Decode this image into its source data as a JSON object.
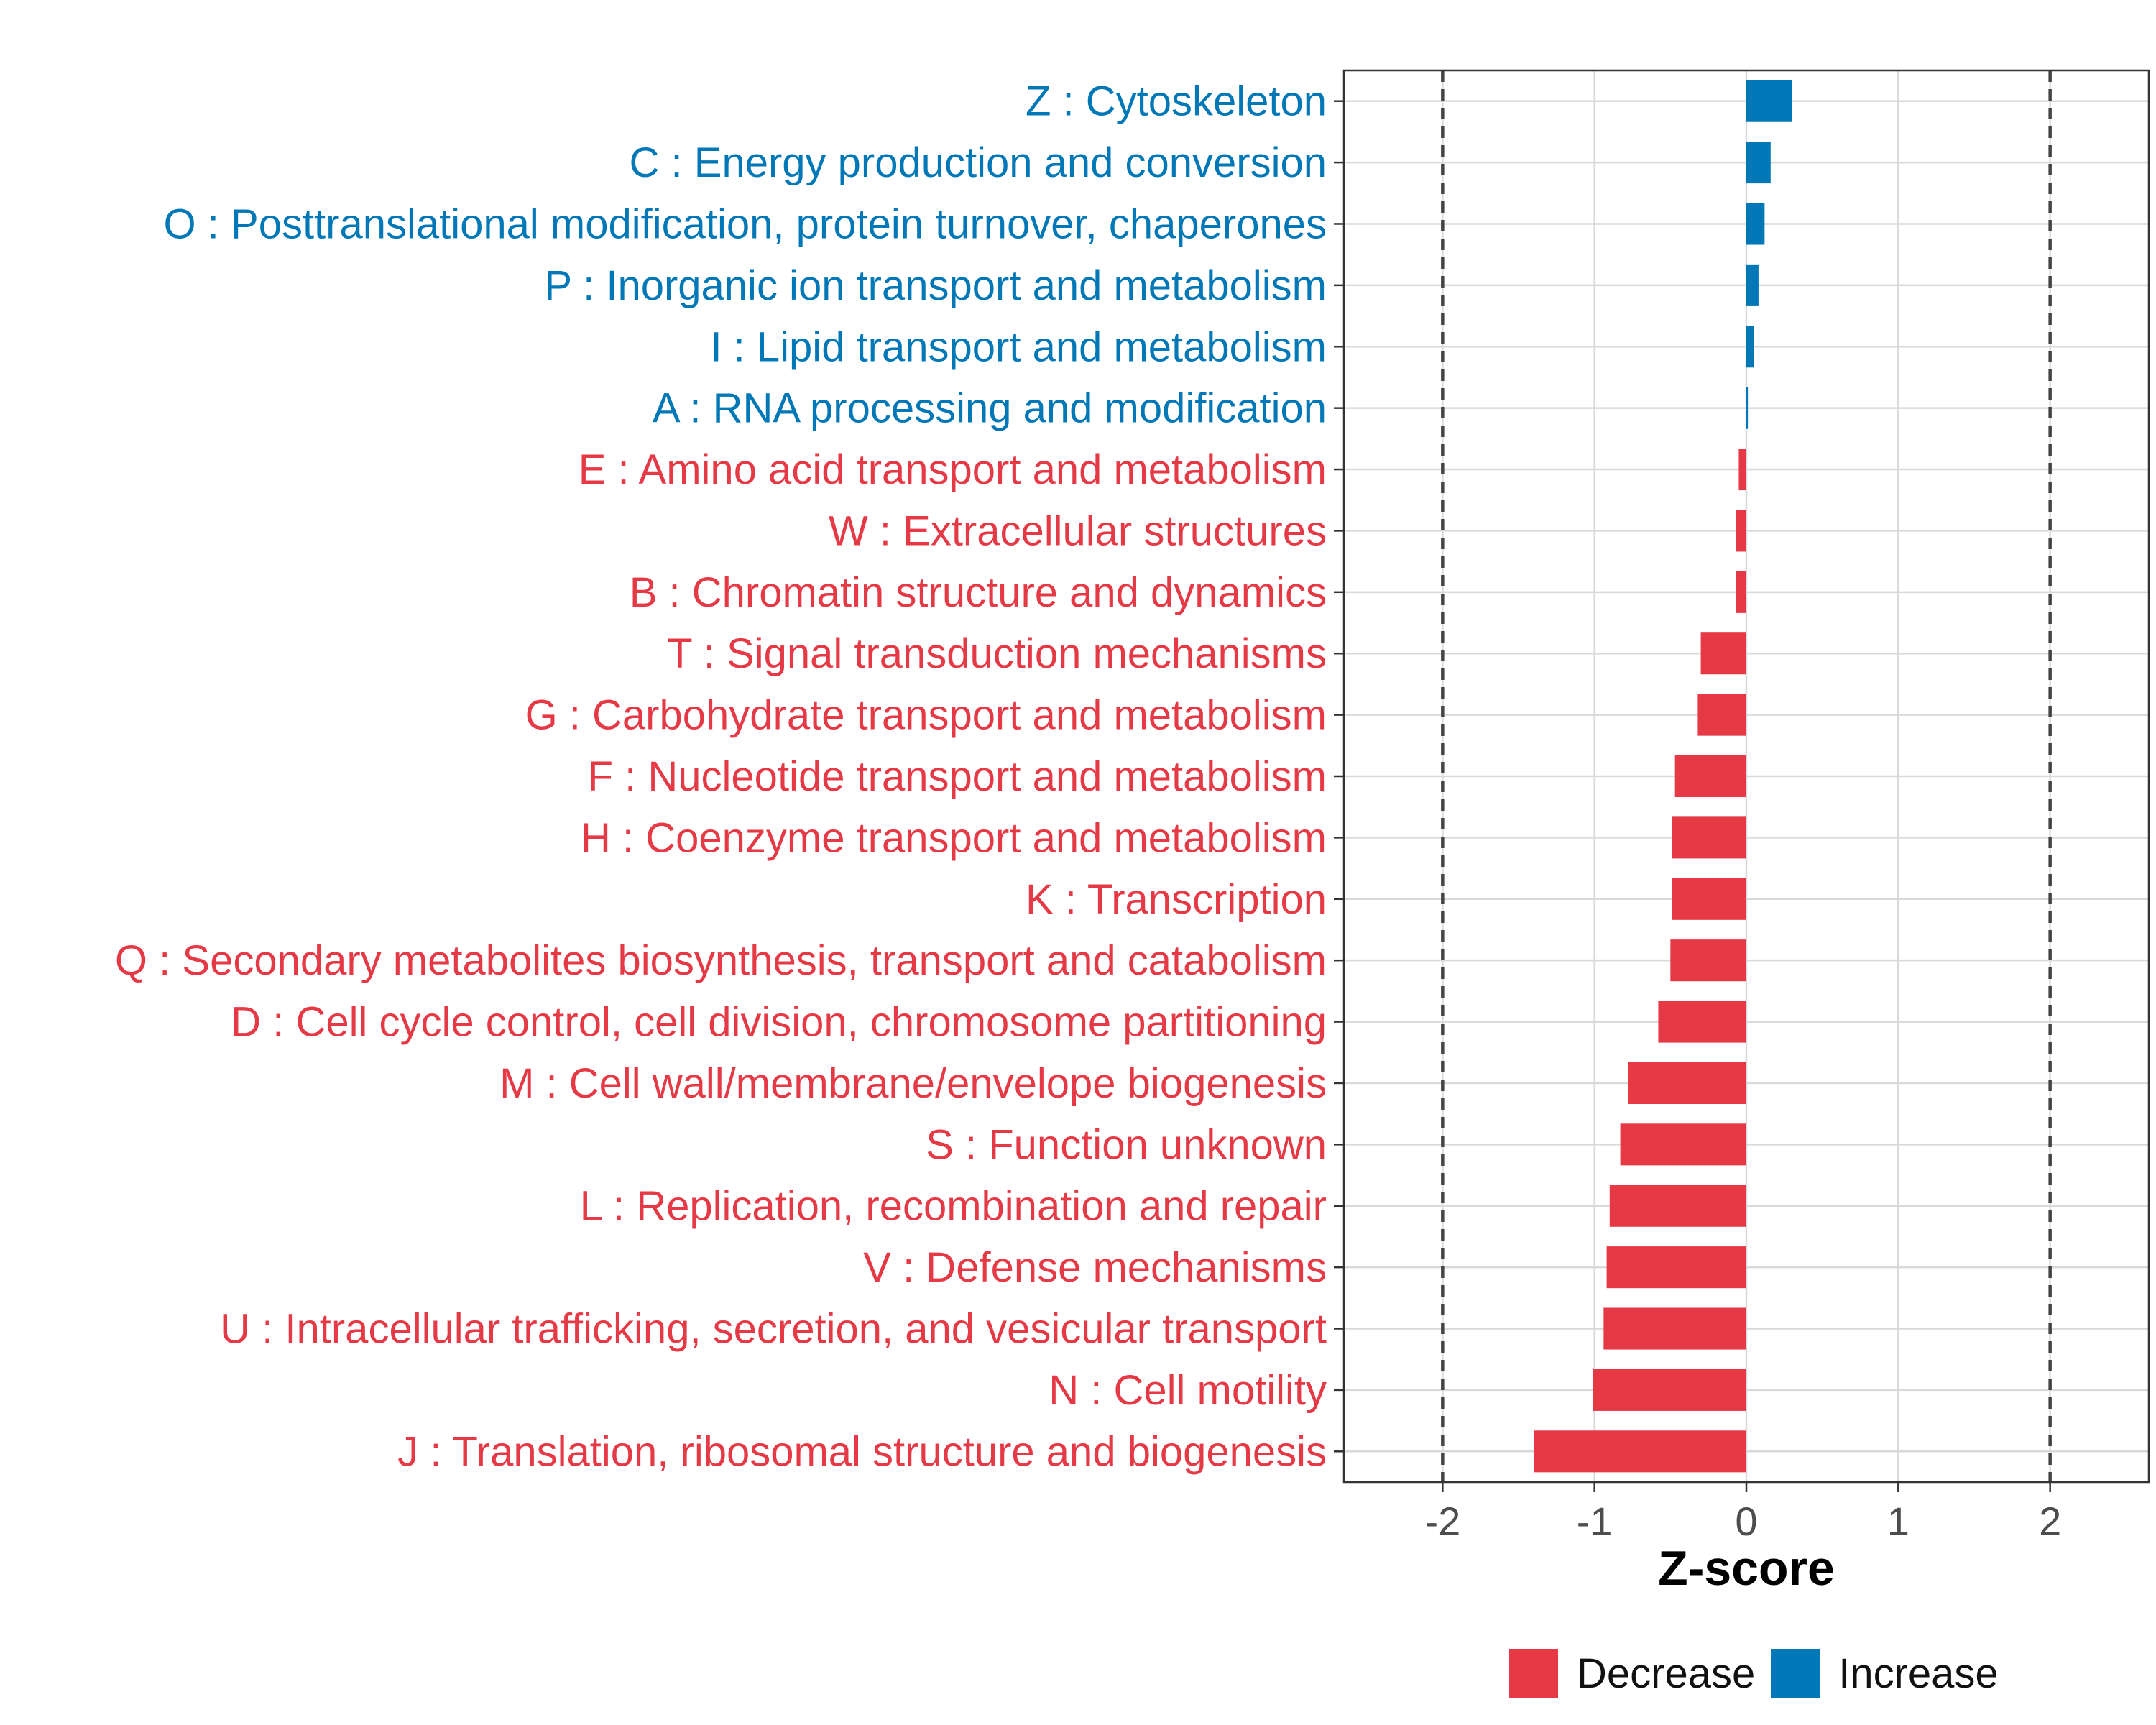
{
  "chart_data": {
    "type": "bar",
    "orientation": "horizontal",
    "xlabel": "Z-score",
    "ylabel": "",
    "xlim": [
      -2.65,
      2.65
    ],
    "xticks": [
      -2,
      -1,
      0,
      1,
      2
    ],
    "xtick_labels": [
      "-2",
      "-1",
      "0",
      "1",
      "2"
    ],
    "reference_lines": [
      -2,
      2
    ],
    "grid": true,
    "legend_position": "bottom",
    "colors": {
      "Decrease": "#E63946",
      "Increase": "#0077B6"
    },
    "legend": [
      "Decrease",
      "Increase"
    ],
    "categories": [
      "Z : Cytoskeleton",
      "C : Energy production and conversion",
      "O : Posttranslational modification, protein turnover, chaperones",
      "P : Inorganic ion transport and metabolism",
      "I : Lipid transport and metabolism",
      "A : RNA processing and modification",
      "E : Amino acid transport and metabolism",
      "W : Extracellular structures",
      "B : Chromatin structure and dynamics",
      "T : Signal transduction mechanisms",
      "G : Carbohydrate transport and metabolism",
      "F : Nucleotide transport and metabolism",
      "H : Coenzyme transport and metabolism",
      "K : Transcription",
      "Q : Secondary metabolites biosynthesis, transport and catabolism",
      "D : Cell cycle control, cell division, chromosome partitioning",
      "M : Cell wall/membrane/envelope biogenesis",
      "S : Function unknown",
      "L : Replication, recombination and repair",
      "V : Defense mechanisms",
      "U : Intracellular trafficking, secretion, and vesicular transport",
      "N : Cell motility",
      "J : Translation, ribosomal structure and biogenesis"
    ],
    "values": [
      0.3,
      0.16,
      0.12,
      0.08,
      0.05,
      0.01,
      -0.05,
      -0.07,
      -0.07,
      -0.3,
      -0.32,
      -0.47,
      -0.49,
      -0.49,
      -0.5,
      -0.58,
      -0.78,
      -0.83,
      -0.9,
      -0.92,
      -0.94,
      -1.01,
      -1.4
    ],
    "groups": [
      "Increase",
      "Increase",
      "Increase",
      "Increase",
      "Increase",
      "Increase",
      "Decrease",
      "Decrease",
      "Decrease",
      "Decrease",
      "Decrease",
      "Decrease",
      "Decrease",
      "Decrease",
      "Decrease",
      "Decrease",
      "Decrease",
      "Decrease",
      "Decrease",
      "Decrease",
      "Decrease",
      "Decrease",
      "Decrease"
    ]
  }
}
